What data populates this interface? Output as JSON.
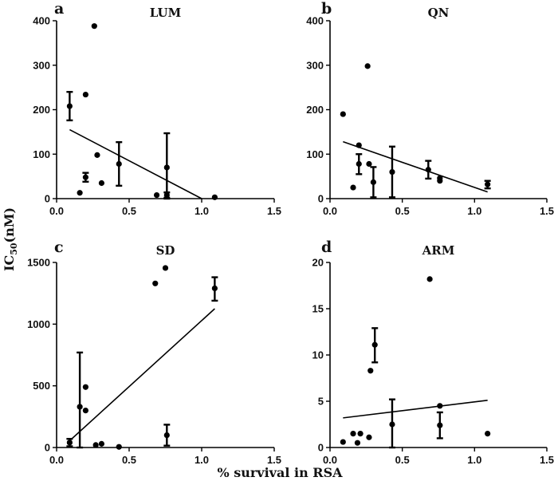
{
  "figure": {
    "xlabel": "% survival in RSA",
    "ylabel": "IC50(nM)",
    "ylabel_main": "IC",
    "ylabel_sub": "50",
    "ylabel_unit": "(nM)"
  },
  "chart_data": [
    {
      "type": "scatter",
      "label": "a",
      "title": "LUM",
      "xlim": [
        0,
        1.5
      ],
      "ylim": [
        0,
        400
      ],
      "xticks": [
        "0.0",
        "0.5",
        "1.0",
        "1.5"
      ],
      "yticks": [
        "0",
        "100",
        "200",
        "300",
        "400"
      ],
      "points": [
        {
          "x": 0.09,
          "y": 208,
          "err": [
            176,
            240
          ]
        },
        {
          "x": 0.16,
          "y": 13
        },
        {
          "x": 0.2,
          "y": 234
        },
        {
          "x": 0.2,
          "y": 48,
          "err": [
            38,
            58
          ]
        },
        {
          "x": 0.26,
          "y": 388
        },
        {
          "x": 0.28,
          "y": 98
        },
        {
          "x": 0.31,
          "y": 35
        },
        {
          "x": 0.43,
          "y": 78,
          "err": [
            29,
            127
          ]
        },
        {
          "x": 0.69,
          "y": 8
        },
        {
          "x": 0.76,
          "y": 70,
          "err": [
            0,
            147
          ]
        },
        {
          "x": 0.76,
          "y": 8,
          "err": [
            2,
            14
          ]
        },
        {
          "x": 1.09,
          "y": 3
        }
      ],
      "fit": {
        "x1": 0.09,
        "y1": 155,
        "x2": 1.0,
        "y2": 0
      }
    },
    {
      "type": "scatter",
      "label": "b",
      "title": "QN",
      "xlim": [
        0,
        1.5
      ],
      "ylim": [
        0,
        400
      ],
      "xticks": [
        "0.0",
        "0.5",
        "1.0",
        "1.5"
      ],
      "yticks": [
        "0",
        "100",
        "200",
        "300",
        "400"
      ],
      "points": [
        {
          "x": 0.09,
          "y": 190
        },
        {
          "x": 0.16,
          "y": 25
        },
        {
          "x": 0.2,
          "y": 120
        },
        {
          "x": 0.2,
          "y": 78,
          "err": [
            55,
            100
          ]
        },
        {
          "x": 0.26,
          "y": 298
        },
        {
          "x": 0.27,
          "y": 78
        },
        {
          "x": 0.3,
          "y": 37,
          "err": [
            3,
            71
          ]
        },
        {
          "x": 0.43,
          "y": 60,
          "err": [
            3,
            117
          ]
        },
        {
          "x": 0.68,
          "y": 65,
          "err": [
            45,
            85
          ]
        },
        {
          "x": 0.76,
          "y": 46
        },
        {
          "x": 0.76,
          "y": 40
        },
        {
          "x": 1.09,
          "y": 32,
          "err": [
            23,
            40
          ]
        }
      ],
      "fit": {
        "x1": 0.09,
        "y1": 128,
        "x2": 1.09,
        "y2": 15
      }
    },
    {
      "type": "scatter",
      "label": "c",
      "title": "SD",
      "xlim": [
        0,
        1.5
      ],
      "ylim": [
        0,
        1500
      ],
      "xticks": [
        "0.0",
        "0.5",
        "1.0",
        "1.5"
      ],
      "yticks": [
        "0",
        "500",
        "1000",
        "1500"
      ],
      "points": [
        {
          "x": 0.09,
          "y": 40,
          "err": [
            10,
            70
          ]
        },
        {
          "x": 0.16,
          "y": 330,
          "err": [
            0,
            770
          ]
        },
        {
          "x": 0.2,
          "y": 300
        },
        {
          "x": 0.2,
          "y": 490
        },
        {
          "x": 0.27,
          "y": 20
        },
        {
          "x": 0.31,
          "y": 30
        },
        {
          "x": 0.43,
          "y": 5
        },
        {
          "x": 0.68,
          "y": 1330
        },
        {
          "x": 0.75,
          "y": 1455
        },
        {
          "x": 0.76,
          "y": 100,
          "err": [
            15,
            185
          ]
        },
        {
          "x": 1.09,
          "y": 1290,
          "err": [
            1190,
            1380
          ]
        }
      ],
      "fit": {
        "x1": 0.09,
        "y1": 55,
        "x2": 1.09,
        "y2": 1125
      }
    },
    {
      "type": "scatter",
      "label": "d",
      "title": "ARM",
      "xlim": [
        0,
        1.5
      ],
      "ylim": [
        0,
        20
      ],
      "xticks": [
        "0.0",
        "0.5",
        "1.0",
        "1.5"
      ],
      "yticks": [
        "0",
        "5",
        "10",
        "15",
        "20"
      ],
      "points": [
        {
          "x": 0.09,
          "y": 0.6
        },
        {
          "x": 0.16,
          "y": 1.5
        },
        {
          "x": 0.19,
          "y": 0.5
        },
        {
          "x": 0.21,
          "y": 1.5
        },
        {
          "x": 0.27,
          "y": 1.1
        },
        {
          "x": 0.28,
          "y": 8.3
        },
        {
          "x": 0.31,
          "y": 11.1,
          "err": [
            9.2,
            12.9
          ]
        },
        {
          "x": 0.43,
          "y": 2.5,
          "err": [
            0,
            5.2
          ]
        },
        {
          "x": 0.69,
          "y": 18.2
        },
        {
          "x": 0.76,
          "y": 4.5
        },
        {
          "x": 0.76,
          "y": 2.4,
          "err": [
            1.0,
            3.8
          ]
        },
        {
          "x": 1.09,
          "y": 1.5
        }
      ],
      "fit": {
        "x1": 0.09,
        "y1": 3.2,
        "x2": 1.09,
        "y2": 5.1
      }
    }
  ]
}
